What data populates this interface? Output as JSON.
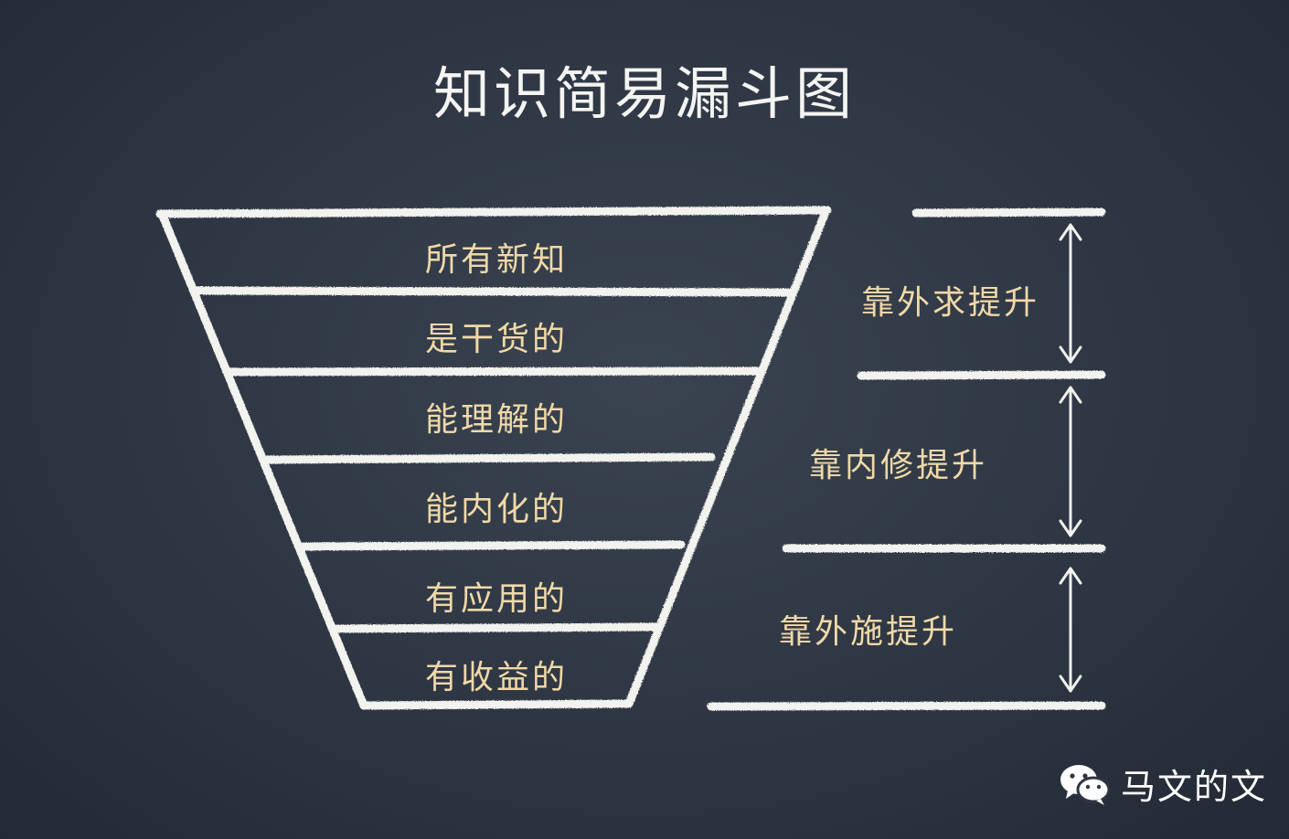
{
  "title": "知识简易漏斗图",
  "funnel": {
    "stages": [
      "所有新知",
      "是干货的",
      "能理解的",
      "能内化的",
      "有应用的",
      "有收益的"
    ]
  },
  "side": {
    "labels": [
      "靠外求提升",
      "靠内修提升",
      "靠外施提升"
    ]
  },
  "footer": {
    "account": "马文的文",
    "icon": "wechat-icon"
  },
  "colors": {
    "board": "#2e3643",
    "chalk": "#f2f2ee",
    "stage_text": "#f0d9a8",
    "title_text": "#f4f4f2"
  }
}
